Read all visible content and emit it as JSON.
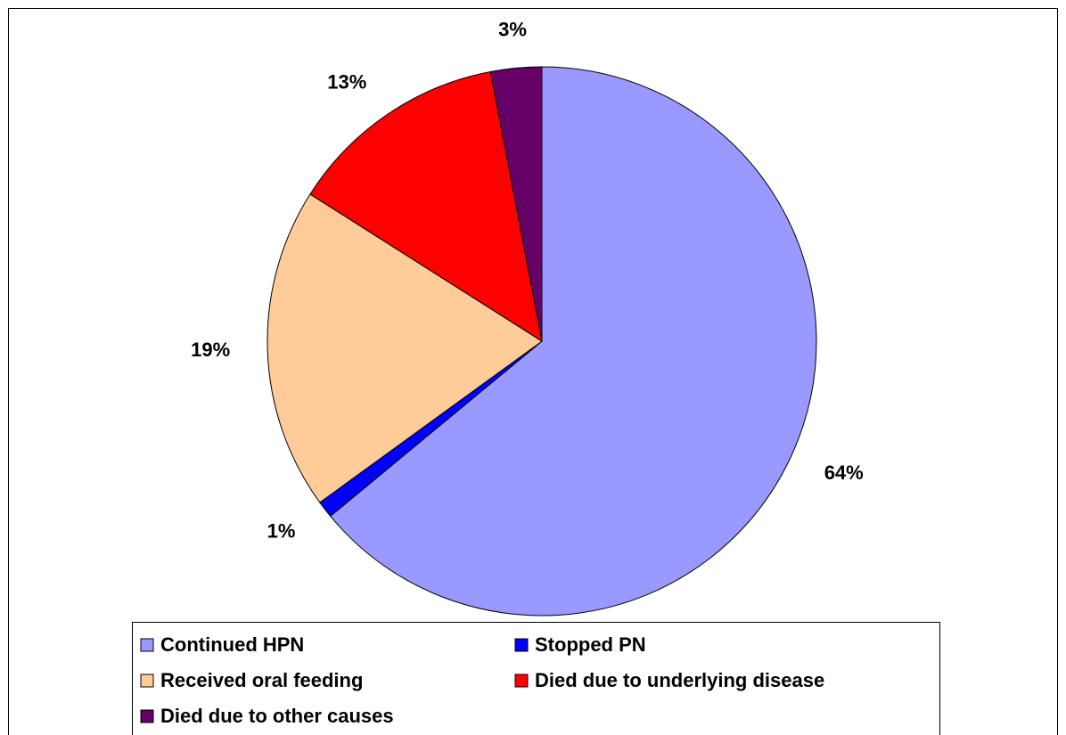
{
  "chart_data": {
    "type": "pie",
    "categories": [
      "Continued HPN",
      "Stopped PN",
      "Received oral feeding",
      "Died due to underlying disease",
      "Died due to other causes"
    ],
    "values": [
      64,
      1,
      19,
      13,
      3
    ],
    "value_labels": [
      "64%",
      "1%",
      "19%",
      "13%",
      "3%"
    ],
    "colors": [
      "#9999ff",
      "#0000ff",
      "#ffcc99",
      "#ff0000",
      "#660066"
    ],
    "legend": "bottom"
  }
}
